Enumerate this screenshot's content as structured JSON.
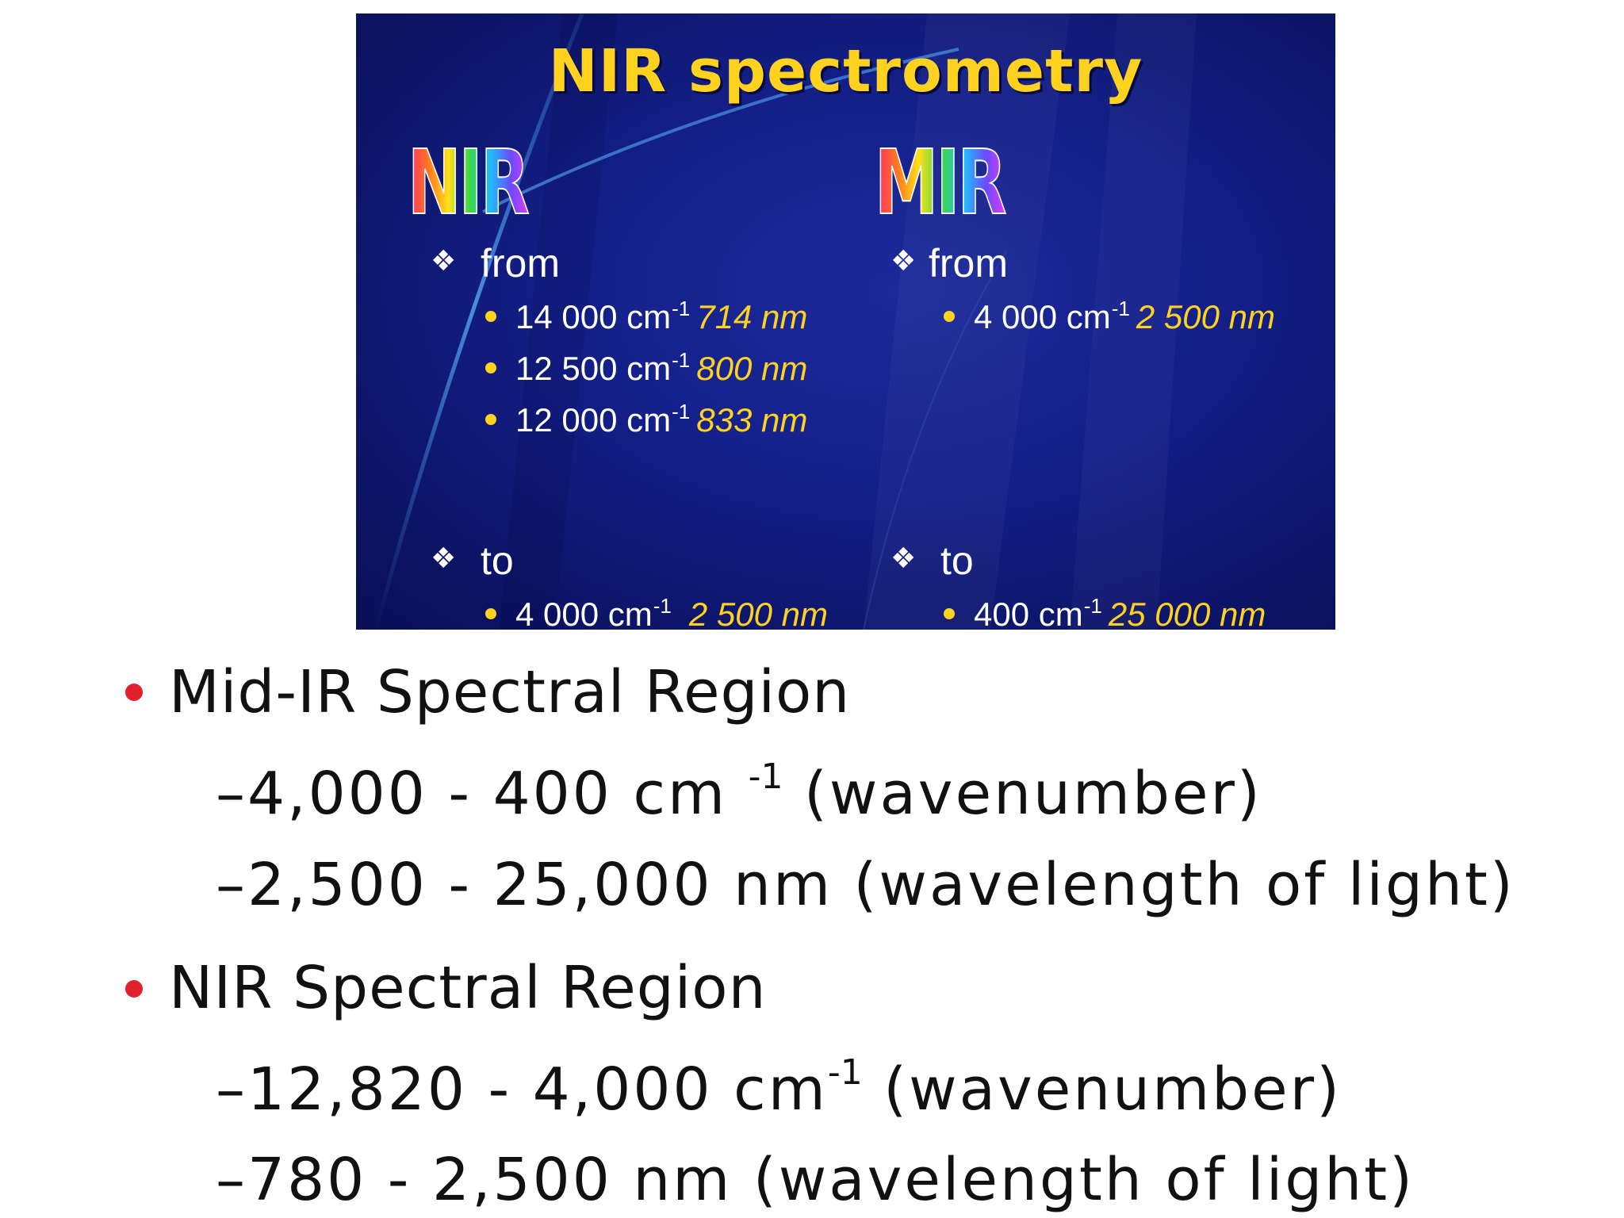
{
  "slide": {
    "title": "NIR spectrometry",
    "columns": [
      {
        "heading": "NIR",
        "from_label": "from",
        "from_items": [
          {
            "wavenumber": "14 000 cm",
            "exp": "-1",
            "wavelength": "714 nm"
          },
          {
            "wavenumber": "12 500 cm",
            "exp": "-1",
            "wavelength": "800 nm"
          },
          {
            "wavenumber": "12 000 cm",
            "exp": "-1",
            "wavelength": "833 nm"
          }
        ],
        "to_label": "to",
        "to_items": [
          {
            "wavenumber": "4 000 cm",
            "exp": "-1",
            "wavelength": "2 500 nm"
          }
        ]
      },
      {
        "heading": "MIR",
        "from_label": "from",
        "from_items": [
          {
            "wavenumber": "4 000 cm",
            "exp": "-1",
            "wavelength": "2 500 nm"
          }
        ],
        "to_label": "to",
        "to_items": [
          {
            "wavenumber": "400 cm",
            "exp": "-1",
            "wavelength": "25 000 nm"
          }
        ]
      }
    ],
    "colors": {
      "background": "#14208a",
      "title": "#ffd21f",
      "accent": "#ffd21f"
    }
  },
  "bullets": [
    {
      "heading": "Mid-IR Spectral Region",
      "subs": [
        {
          "pre": "–4,000 - 400 cm ",
          "exp": "-1",
          "post": " (wavenumber)"
        },
        {
          "pre": "–2,500 - 25,000 nm (wavelength of light)",
          "exp": "",
          "post": ""
        }
      ]
    },
    {
      "heading": "NIR Spectral Region",
      "subs": [
        {
          "pre": "–12,820 - 4,000 cm",
          "exp": "-1",
          "post": " (wavenumber)"
        },
        {
          "pre": "–780 - 2,500 nm (wavelength of light)",
          "exp": "",
          "post": ""
        }
      ]
    }
  ],
  "colors": {
    "bullet_dot": "#e0202a",
    "text": "#111111"
  }
}
